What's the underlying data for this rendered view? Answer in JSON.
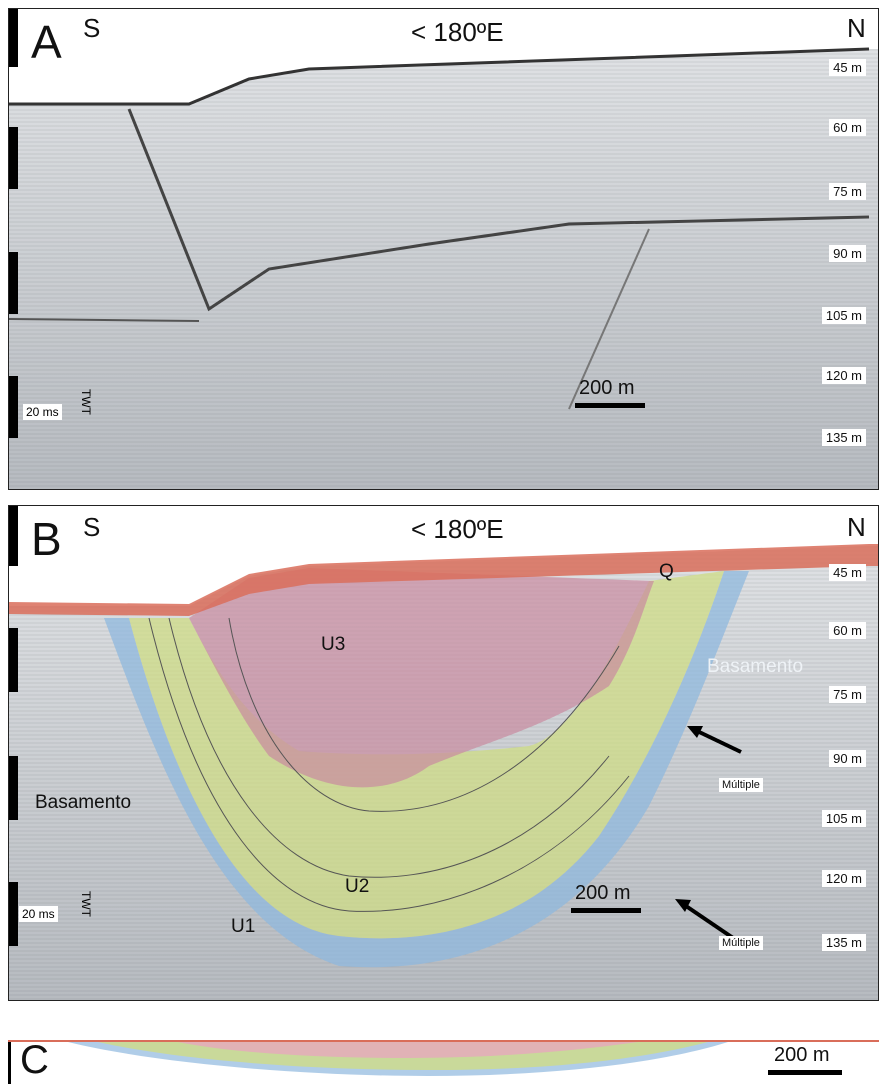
{
  "panels": {
    "a": {
      "letter": "A",
      "south": "S",
      "north": "N",
      "azimuth": "< 180ºE",
      "depths": [
        "45 m",
        "60 m",
        "75 m",
        "90 m",
        "105 m",
        "120 m",
        "135 m"
      ],
      "scale": "200 m",
      "twt_value": "20 ms",
      "twt_label": "TWT"
    },
    "b": {
      "letter": "B",
      "south": "S",
      "north": "N",
      "azimuth": "< 180ºE",
      "depths": [
        "45 m",
        "60 m",
        "75 m",
        "90 m",
        "105 m",
        "120 m",
        "135 m"
      ],
      "scale": "200 m",
      "twt_value": "20 ms",
      "twt_label": "TWT",
      "units": {
        "q": "Q",
        "u3": "U3",
        "u2": "U2",
        "u1": "U1"
      },
      "basement_left": "Basamento",
      "basement_right": "Basamento",
      "multiple_1": "Múltiple",
      "multiple_2": "Múltiple"
    },
    "c": {
      "letter": "C",
      "scale": "200 m"
    }
  },
  "colors": {
    "q": "#d96d5a",
    "u3": "#c98aa0",
    "u2": "#cfdc86",
    "u1": "#8fb8de",
    "seismic_bg": "#c9ccd0"
  }
}
